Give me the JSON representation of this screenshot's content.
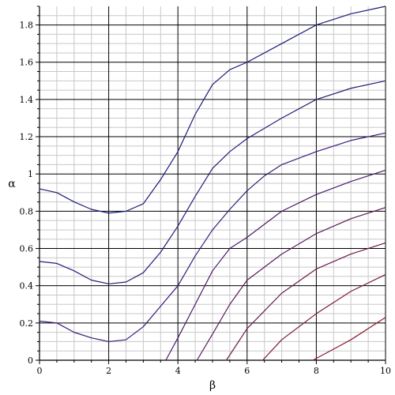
{
  "chart_data": {
    "type": "line",
    "xlabel": "β",
    "ylabel": "α",
    "xlim": [
      0,
      10
    ],
    "ylim": [
      0,
      1.9
    ],
    "grid": true,
    "x_ticks": [
      "0",
      "2",
      "4",
      "6",
      "8",
      "10"
    ],
    "y_ticks": [
      "0",
      "0.2",
      "0.4",
      "0.6",
      "0.8",
      "1",
      "1.2",
      "1.4",
      "1.6",
      "1.8"
    ],
    "series": [
      {
        "color": "#1a1a7a",
        "points": [
          [
            0,
            0.92
          ],
          [
            0.5,
            0.9
          ],
          [
            1,
            0.85
          ],
          [
            1.5,
            0.81
          ],
          [
            2,
            0.79
          ],
          [
            2.5,
            0.8
          ],
          [
            3,
            0.84
          ],
          [
            3.5,
            0.97
          ],
          [
            4,
            1.12
          ],
          [
            4.5,
            1.32
          ],
          [
            5,
            1.48
          ],
          [
            5.5,
            1.56
          ],
          [
            6,
            1.6
          ],
          [
            7,
            1.7
          ],
          [
            8,
            1.8
          ],
          [
            9,
            1.86
          ],
          [
            10,
            1.9
          ]
        ]
      },
      {
        "color": "#2a1a7a",
        "points": [
          [
            0,
            0.53
          ],
          [
            0.5,
            0.52
          ],
          [
            1,
            0.48
          ],
          [
            1.5,
            0.43
          ],
          [
            2,
            0.41
          ],
          [
            2.5,
            0.42
          ],
          [
            3,
            0.47
          ],
          [
            3.5,
            0.58
          ],
          [
            4,
            0.72
          ],
          [
            4.5,
            0.88
          ],
          [
            5,
            1.03
          ],
          [
            5.5,
            1.12
          ],
          [
            6,
            1.19
          ],
          [
            7,
            1.3
          ],
          [
            8,
            1.4
          ],
          [
            9,
            1.46
          ],
          [
            10,
            1.5
          ]
        ]
      },
      {
        "color": "#3a1a7a",
        "points": [
          [
            0,
            0.21
          ],
          [
            0.5,
            0.2
          ],
          [
            1,
            0.15
          ],
          [
            1.5,
            0.12
          ],
          [
            2,
            0.1
          ],
          [
            2.5,
            0.11
          ],
          [
            3,
            0.18
          ],
          [
            3.5,
            0.29
          ],
          [
            4,
            0.4
          ],
          [
            4.5,
            0.56
          ],
          [
            5,
            0.7
          ],
          [
            5.5,
            0.81
          ],
          [
            6,
            0.91
          ],
          [
            6.5,
            0.99
          ],
          [
            7,
            1.05
          ],
          [
            8,
            1.12
          ],
          [
            9,
            1.18
          ],
          [
            10,
            1.22
          ]
        ]
      },
      {
        "color": "#4a1a6a",
        "points": [
          [
            3.65,
            0
          ],
          [
            4,
            0.12
          ],
          [
            4.5,
            0.3
          ],
          [
            5,
            0.48
          ],
          [
            5.5,
            0.6
          ],
          [
            6,
            0.66
          ],
          [
            7,
            0.8
          ],
          [
            8,
            0.89
          ],
          [
            9,
            0.96
          ],
          [
            10,
            1.02
          ]
        ]
      },
      {
        "color": "#5a1a5a",
        "points": [
          [
            4.55,
            0
          ],
          [
            5,
            0.14
          ],
          [
            5.5,
            0.3
          ],
          [
            6,
            0.43
          ],
          [
            7,
            0.57
          ],
          [
            8,
            0.68
          ],
          [
            9,
            0.76
          ],
          [
            10,
            0.82
          ]
        ]
      },
      {
        "color": "#6a1a4a",
        "points": [
          [
            5.4,
            0
          ],
          [
            6,
            0.17
          ],
          [
            7,
            0.36
          ],
          [
            8,
            0.49
          ],
          [
            9,
            0.57
          ],
          [
            10,
            0.63
          ]
        ]
      },
      {
        "color": "#7a1a3a",
        "points": [
          [
            6.45,
            0
          ],
          [
            7,
            0.11
          ],
          [
            8,
            0.25
          ],
          [
            9,
            0.37
          ],
          [
            10,
            0.46
          ]
        ]
      },
      {
        "color": "#8a1a2a",
        "points": [
          [
            7.9,
            0
          ],
          [
            8.5,
            0.06
          ],
          [
            9,
            0.11
          ],
          [
            10,
            0.23
          ]
        ]
      }
    ]
  }
}
